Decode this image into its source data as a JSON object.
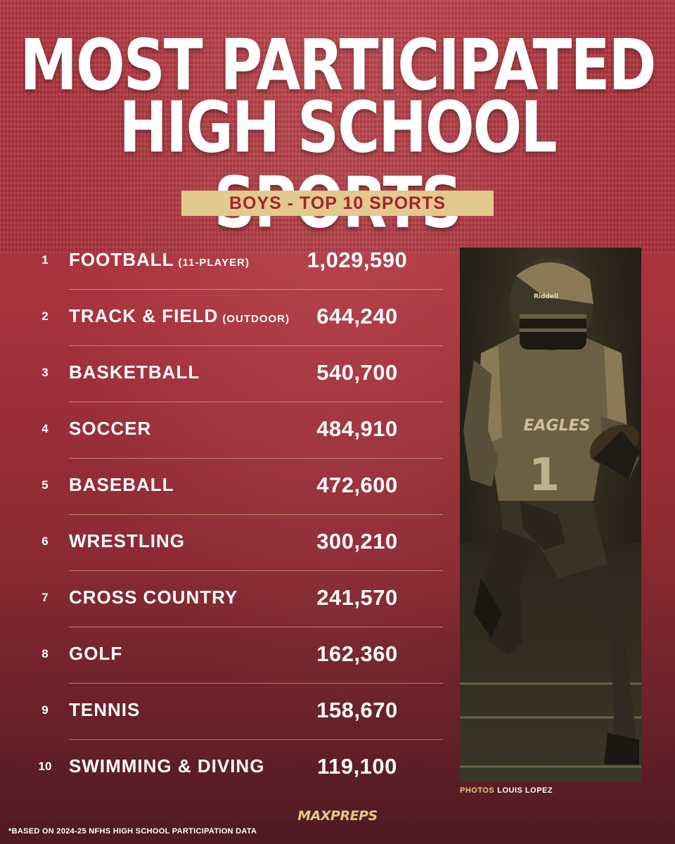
{
  "title_line1": "MOST PARTICIPATED",
  "title_line2": "HIGH SCHOOL SPORTS",
  "subtitle": "BOYS - TOP 10 SPORTS",
  "rows": [
    {
      "rank": "1",
      "sport": "FOOTBALL",
      "qualifier": "(11-PLAYER)",
      "value": "1,029,590"
    },
    {
      "rank": "2",
      "sport": "TRACK & FIELD",
      "qualifier": "(OUTDOOR)",
      "value": "644,240"
    },
    {
      "rank": "3",
      "sport": "BASKETBALL",
      "qualifier": "",
      "value": "540,700"
    },
    {
      "rank": "4",
      "sport": "SOCCER",
      "qualifier": "",
      "value": "484,910"
    },
    {
      "rank": "5",
      "sport": "BASEBALL",
      "qualifier": "",
      "value": "472,600"
    },
    {
      "rank": "6",
      "sport": "WRESTLING",
      "qualifier": "",
      "value": "300,210"
    },
    {
      "rank": "7",
      "sport": "CROSS COUNTRY",
      "qualifier": "",
      "value": "241,570"
    },
    {
      "rank": "8",
      "sport": "GOLF",
      "qualifier": "",
      "value": "162,360"
    },
    {
      "rank": "9",
      "sport": "TENNIS",
      "qualifier": "",
      "value": "158,670"
    },
    {
      "rank": "10",
      "sport": "SWIMMING & DIVING",
      "qualifier": "",
      "value": "119,100"
    }
  ],
  "photo": {
    "jersey_text": "EAGLES",
    "jersey_number": "1",
    "helmet_brand": "Riddell",
    "credit_label": "PHOTOS",
    "credit_name": "LOUIS LOPEZ"
  },
  "footnote": "*BASED ON 2024-25 NFHS HIGH SCHOOL PARTICIPATION DATA",
  "logo": "MAXPREPS",
  "colors": {
    "background": "#a8323c",
    "accent_gold": "#e2c98d",
    "subtitle_text": "#a5222d"
  }
}
